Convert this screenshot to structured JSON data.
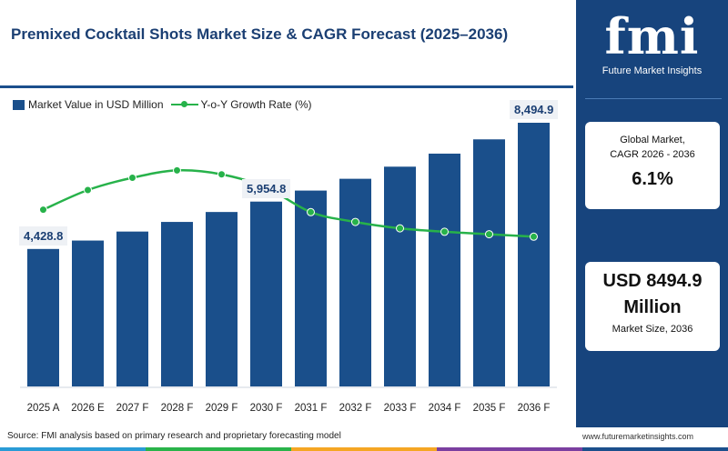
{
  "header": {
    "title": "Premixed Cocktail Shots Market Size & CAGR Forecast (2025–2036)"
  },
  "legend": {
    "bar_label": "Market Value in USD Million",
    "line_label": "Y-o-Y Growth Rate (%)"
  },
  "footer": {
    "source": "Source: FMI analysis based on primary research and proprietary forecasting model",
    "url": "www.futuremarketinsights.com"
  },
  "brand": {
    "logo_text": "fmi",
    "logo_sub": "Future Market Insights"
  },
  "sidebar": {
    "cagr_label_1": "Global Market,",
    "cagr_label_2": "CAGR 2026 - 2036",
    "cagr_value": "6.1%",
    "size_value_1": "USD 8494.9",
    "size_value_2": "Million",
    "size_label": "Market Size, 2036"
  },
  "colors": {
    "bar": "#1a4f8b",
    "line": "#27b24a",
    "panel": "#17447d",
    "title": "#1b3f73",
    "strip": [
      "#2a9bd6",
      "#2ab34a",
      "#f5a623",
      "#7b3fa0",
      "#1b4f8c"
    ]
  },
  "chart_data": {
    "type": "bar",
    "title": "Premixed Cocktail Shots Market Size & CAGR Forecast (2025–2036)",
    "categories": [
      "2025 A",
      "2026 E",
      "2027 F",
      "2028 F",
      "2029 F",
      "2030 F",
      "2031 F",
      "2032 F",
      "2033 F",
      "2034 F",
      "2035 F",
      "2036 F"
    ],
    "series": [
      {
        "name": "Market Value in USD Million",
        "type": "bar",
        "values": [
          4428.8,
          4700,
          4990,
          5300,
          5620,
          5954.8,
          6310,
          6690,
          7080,
          7500,
          7960,
          8494.9
        ]
      },
      {
        "name": "Y-o-Y Growth Rate (%)",
        "type": "line",
        "values": [
          6.1,
          6.5,
          6.75,
          6.9,
          6.82,
          6.55,
          6.05,
          5.85,
          5.72,
          5.65,
          5.6,
          5.55
        ]
      }
    ],
    "data_labels": [
      {
        "index": 0,
        "text": "4,428.8"
      },
      {
        "index": 5,
        "text": "5,954.8"
      },
      {
        "index": 11,
        "text": "8,494.9"
      }
    ],
    "ylim": [
      0,
      8700
    ],
    "line_ylim": [
      2.5,
      8.0
    ],
    "grid": false,
    "legend": "top-left"
  }
}
